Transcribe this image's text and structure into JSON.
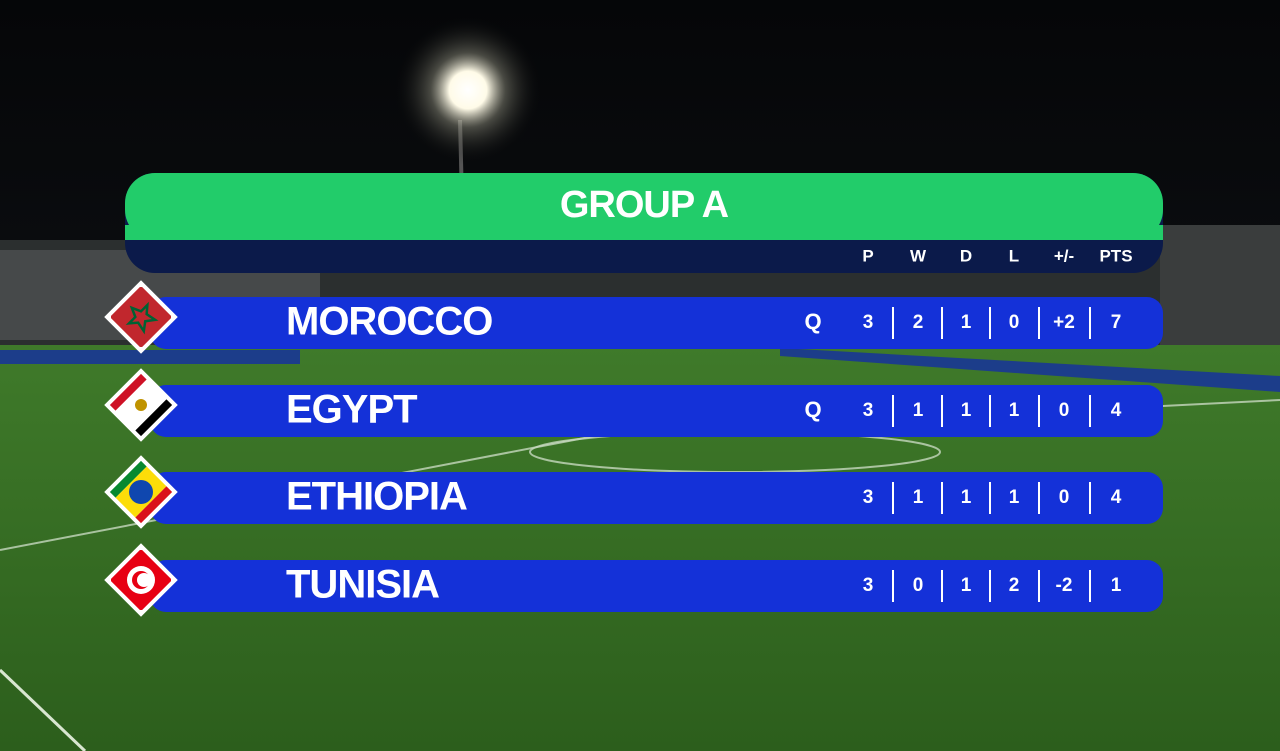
{
  "graphic": {
    "title": "GROUP A",
    "columns": [
      "P",
      "W",
      "D",
      "L",
      "+/-",
      "PTS"
    ]
  },
  "table": {
    "rows": [
      {
        "team": "MOROCCO",
        "status": "Q",
        "stats": [
          "3",
          "2",
          "1",
          "0",
          "+2",
          "7"
        ]
      },
      {
        "team": "EGYPT",
        "status": "Q",
        "stats": [
          "3",
          "1",
          "1",
          "1",
          "0",
          "4"
        ]
      },
      {
        "team": "ETHIOPIA",
        "stats": [
          "3",
          "1",
          "1",
          "1",
          "0",
          "4"
        ]
      },
      {
        "team": "TUNISIA",
        "stats": [
          "3",
          "0",
          "1",
          "2",
          "-2",
          "1"
        ]
      }
    ]
  }
}
